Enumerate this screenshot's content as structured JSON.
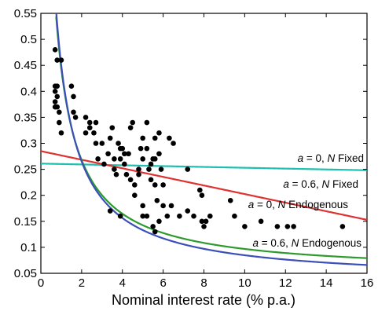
{
  "chart_data": {
    "type": "scatter",
    "title": "",
    "xlabel": "Nominal interest rate (% p.a.)",
    "ylabel": "",
    "xlim": [
      0,
      16
    ],
    "ylim": [
      0.05,
      0.55
    ],
    "grid": false,
    "legend": "none",
    "xticks": [
      0,
      2,
      4,
      6,
      8,
      10,
      12,
      14,
      16
    ],
    "yticks": [
      0.05,
      0.1,
      0.15,
      0.2,
      0.25,
      0.3,
      0.35,
      0.4,
      0.45,
      0.5,
      0.55
    ],
    "xtick_labels": [
      "0",
      "2",
      "4",
      "6",
      "8",
      "10",
      "12",
      "14",
      "16"
    ],
    "ytick_labels": [
      "0.05",
      "0.1",
      "0.15",
      "0.2",
      "0.25",
      "0.3",
      "0.35",
      "0.4",
      "0.45",
      "0.5",
      "0.55"
    ],
    "points": [
      [
        0.7,
        0.48
      ],
      [
        0.8,
        0.46
      ],
      [
        1.0,
        0.46
      ],
      [
        0.7,
        0.41
      ],
      [
        0.8,
        0.41
      ],
      [
        0.7,
        0.4
      ],
      [
        0.8,
        0.39
      ],
      [
        0.7,
        0.38
      ],
      [
        0.7,
        0.37
      ],
      [
        0.8,
        0.37
      ],
      [
        0.9,
        0.36
      ],
      [
        0.9,
        0.34
      ],
      [
        1.0,
        0.32
      ],
      [
        1.5,
        0.41
      ],
      [
        1.6,
        0.39
      ],
      [
        1.6,
        0.36
      ],
      [
        1.7,
        0.35
      ],
      [
        2.2,
        0.35
      ],
      [
        2.2,
        0.32
      ],
      [
        2.4,
        0.34
      ],
      [
        2.4,
        0.33
      ],
      [
        2.6,
        0.32
      ],
      [
        2.7,
        0.34
      ],
      [
        2.7,
        0.3
      ],
      [
        2.8,
        0.27
      ],
      [
        3.0,
        0.3
      ],
      [
        3.1,
        0.26
      ],
      [
        3.3,
        0.28
      ],
      [
        3.4,
        0.31
      ],
      [
        3.5,
        0.33
      ],
      [
        3.6,
        0.25
      ],
      [
        3.7,
        0.24
      ],
      [
        3.6,
        0.27
      ],
      [
        3.8,
        0.3
      ],
      [
        3.9,
        0.29
      ],
      [
        3.9,
        0.27
      ],
      [
        4.0,
        0.29
      ],
      [
        4.1,
        0.28
      ],
      [
        4.1,
        0.26
      ],
      [
        4.2,
        0.24
      ],
      [
        4.3,
        0.28
      ],
      [
        4.4,
        0.33
      ],
      [
        4.4,
        0.23
      ],
      [
        4.5,
        0.34
      ],
      [
        4.6,
        0.2
      ],
      [
        4.6,
        0.22
      ],
      [
        4.8,
        0.25
      ],
      [
        4.8,
        0.24
      ],
      [
        4.9,
        0.29
      ],
      [
        5.0,
        0.31
      ],
      [
        5.0,
        0.27
      ],
      [
        5.0,
        0.18
      ],
      [
        5.2,
        0.34
      ],
      [
        5.2,
        0.29
      ],
      [
        5.3,
        0.25
      ],
      [
        5.4,
        0.23
      ],
      [
        5.4,
        0.26
      ],
      [
        5.5,
        0.27
      ],
      [
        5.6,
        0.31
      ],
      [
        5.6,
        0.27
      ],
      [
        5.6,
        0.22
      ],
      [
        5.7,
        0.19
      ],
      [
        5.8,
        0.32
      ],
      [
        5.8,
        0.28
      ],
      [
        5.9,
        0.25
      ],
      [
        6.0,
        0.22
      ],
      [
        6.3,
        0.31
      ],
      [
        6.5,
        0.3
      ],
      [
        7.2,
        0.25
      ],
      [
        5.0,
        0.16
      ],
      [
        5.2,
        0.16
      ],
      [
        5.5,
        0.14
      ],
      [
        5.6,
        0.13
      ],
      [
        5.8,
        0.15
      ],
      [
        6.2,
        0.16
      ],
      [
        6.4,
        0.18
      ],
      [
        6.8,
        0.16
      ],
      [
        7.2,
        0.17
      ],
      [
        7.5,
        0.16
      ],
      [
        7.9,
        0.15
      ],
      [
        8.0,
        0.14
      ],
      [
        8.1,
        0.15
      ],
      [
        8.3,
        0.16
      ],
      [
        9.3,
        0.19
      ],
      [
        9.5,
        0.16
      ],
      [
        10.0,
        0.14
      ],
      [
        10.8,
        0.15
      ],
      [
        11.6,
        0.14
      ],
      [
        12.1,
        0.14
      ],
      [
        12.4,
        0.14
      ],
      [
        14.8,
        0.14
      ],
      [
        3.4,
        0.17
      ],
      [
        3.9,
        0.16
      ],
      [
        7.8,
        0.21
      ],
      [
        7.9,
        0.2
      ],
      [
        6.0,
        0.18
      ]
    ],
    "series": [
      {
        "color": "#1fbfae",
        "curve": "flat_high"
      },
      {
        "color": "#e03131",
        "curve": "linear"
      },
      {
        "color": "#2e9a2e",
        "curve": "hyper_green"
      },
      {
        "color": "#3b4fb8",
        "curve": "hyper_blue"
      }
    ],
    "annotations": [
      {
        "id": "fixed_a0",
        "parts": [
          [
            "a",
            "italic"
          ],
          [
            " = 0, ",
            "normal"
          ],
          [
            "N",
            "italic"
          ],
          [
            " Fixed",
            "normal"
          ]
        ]
      },
      {
        "id": "fixed_a06",
        "parts": [
          [
            "a",
            "italic"
          ],
          [
            " = 0.6, ",
            "normal"
          ],
          [
            "N",
            "italic"
          ],
          [
            " Fixed",
            "normal"
          ]
        ]
      },
      {
        "id": "endo_a0",
        "parts": [
          [
            "a",
            "italic"
          ],
          [
            " = 0, ",
            "normal"
          ],
          [
            "N",
            "italic"
          ],
          [
            " Endogenous",
            "normal"
          ]
        ]
      },
      {
        "id": "endo_a06",
        "parts": [
          [
            "a",
            "italic"
          ],
          [
            " = 0.6, ",
            "normal"
          ],
          [
            "N",
            "italic"
          ],
          [
            " Endogenous",
            "normal"
          ]
        ]
      }
    ]
  }
}
